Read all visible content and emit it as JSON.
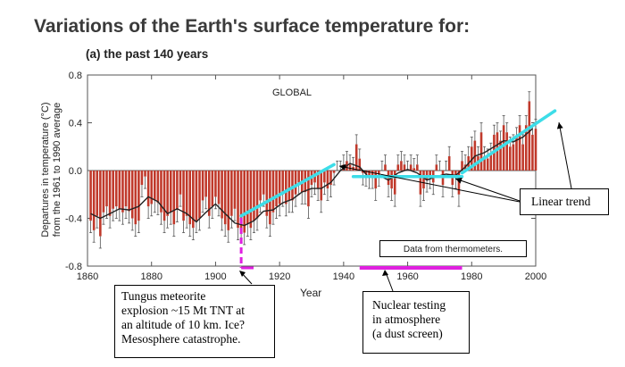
{
  "title": "Variations of the Earth's surface temperature for:",
  "subtitle": "(a) the past 140 years",
  "chart_data": {
    "type": "bar",
    "title": "GLOBAL",
    "xlabel": "Year",
    "ylabel_line1": "Departures in temperature (°C)",
    "ylabel_line2": "from the 1961 to 1990 average",
    "xlim": [
      1860,
      2000
    ],
    "ylim": [
      -0.8,
      0.8
    ],
    "x_ticks": [
      1860,
      1880,
      1900,
      1920,
      1940,
      1960,
      1980,
      2000
    ],
    "y_ticks": [
      "0.8",
      "0.4",
      "0.0",
      "-0.4",
      "-0.8"
    ],
    "y_tick_values": [
      0.8,
      0.4,
      0.0,
      -0.4,
      -0.8
    ],
    "bar_color": "#c0392b",
    "smooth_color": "#222222",
    "trend_color": "#3ddde8",
    "marker_color": "#e020e0",
    "years": [
      1861,
      1862,
      1863,
      1864,
      1865,
      1866,
      1867,
      1868,
      1869,
      1870,
      1871,
      1872,
      1873,
      1874,
      1875,
      1876,
      1877,
      1878,
      1879,
      1880,
      1881,
      1882,
      1883,
      1884,
      1885,
      1886,
      1887,
      1888,
      1889,
      1890,
      1891,
      1892,
      1893,
      1894,
      1895,
      1896,
      1897,
      1898,
      1899,
      1900,
      1901,
      1902,
      1903,
      1904,
      1905,
      1906,
      1907,
      1908,
      1909,
      1910,
      1911,
      1912,
      1913,
      1914,
      1915,
      1916,
      1917,
      1918,
      1919,
      1920,
      1921,
      1922,
      1923,
      1924,
      1925,
      1926,
      1927,
      1928,
      1929,
      1930,
      1931,
      1932,
      1933,
      1934,
      1935,
      1936,
      1937,
      1938,
      1939,
      1940,
      1941,
      1942,
      1943,
      1944,
      1945,
      1946,
      1947,
      1948,
      1949,
      1950,
      1951,
      1952,
      1953,
      1954,
      1955,
      1956,
      1957,
      1958,
      1959,
      1960,
      1961,
      1962,
      1963,
      1964,
      1965,
      1966,
      1967,
      1968,
      1969,
      1970,
      1971,
      1972,
      1973,
      1974,
      1975,
      1976,
      1977,
      1978,
      1979,
      1980,
      1981,
      1982,
      1983,
      1984,
      1985,
      1986,
      1987,
      1988,
      1989,
      1990,
      1991,
      1992,
      1993,
      1994,
      1995,
      1996,
      1997,
      1998,
      1999,
      2000
    ],
    "anomalies": [
      -0.42,
      -0.5,
      -0.38,
      -0.55,
      -0.35,
      -0.3,
      -0.38,
      -0.32,
      -0.3,
      -0.32,
      -0.35,
      -0.3,
      -0.34,
      -0.4,
      -0.45,
      -0.42,
      -0.12,
      -0.05,
      -0.3,
      -0.28,
      -0.25,
      -0.27,
      -0.35,
      -0.42,
      -0.38,
      -0.35,
      -0.45,
      -0.33,
      -0.2,
      -0.42,
      -0.38,
      -0.45,
      -0.48,
      -0.42,
      -0.4,
      -0.25,
      -0.22,
      -0.38,
      -0.3,
      -0.22,
      -0.28,
      -0.4,
      -0.45,
      -0.5,
      -0.38,
      -0.32,
      -0.48,
      -0.5,
      -0.52,
      -0.45,
      -0.48,
      -0.42,
      -0.4,
      -0.25,
      -0.2,
      -0.38,
      -0.45,
      -0.35,
      -0.3,
      -0.28,
      -0.2,
      -0.28,
      -0.25,
      -0.25,
      -0.2,
      -0.1,
      -0.18,
      -0.18,
      -0.3,
      -0.12,
      -0.1,
      -0.15,
      -0.25,
      -0.1,
      -0.15,
      -0.12,
      -0.02,
      0.0,
      0.0,
      0.05,
      0.08,
      0.05,
      0.03,
      0.22,
      0.1,
      -0.02,
      -0.03,
      -0.05,
      -0.05,
      -0.15,
      -0.03,
      0.0,
      0.05,
      -0.12,
      -0.15,
      -0.2,
      0.05,
      0.08,
      0.05,
      0.0,
      0.05,
      0.02,
      0.05,
      -0.2,
      -0.15,
      -0.08,
      -0.05,
      -0.1,
      0.05,
      0.0,
      -0.12,
      0.0,
      0.12,
      -0.12,
      -0.05,
      -0.2,
      0.08,
      0.05,
      0.12,
      0.2,
      0.25,
      0.12,
      0.32,
      0.12,
      0.1,
      0.15,
      0.3,
      0.32,
      0.25,
      0.38,
      0.32,
      0.2,
      0.22,
      0.28,
      0.38,
      0.22,
      0.38,
      0.58,
      0.3,
      0.35
    ],
    "smoothed_x": [
      1861,
      1864,
      1867,
      1870,
      1873,
      1876,
      1879,
      1882,
      1885,
      1888,
      1891,
      1894,
      1897,
      1900,
      1903,
      1906,
      1909,
      1912,
      1915,
      1918,
      1921,
      1924,
      1927,
      1930,
      1933,
      1936,
      1939,
      1942,
      1945,
      1948,
      1951,
      1954,
      1957,
      1960,
      1963,
      1966,
      1969,
      1972,
      1975,
      1978,
      1981,
      1984,
      1987,
      1990,
      1993,
      1996,
      1999
    ],
    "smoothed_y": [
      -0.36,
      -0.4,
      -0.36,
      -0.32,
      -0.33,
      -0.3,
      -0.22,
      -0.26,
      -0.36,
      -0.32,
      -0.36,
      -0.43,
      -0.35,
      -0.28,
      -0.36,
      -0.44,
      -0.46,
      -0.42,
      -0.34,
      -0.33,
      -0.27,
      -0.24,
      -0.18,
      -0.15,
      -0.15,
      -0.1,
      0.0,
      0.06,
      0.03,
      -0.06,
      -0.04,
      -0.08,
      -0.02,
      0.01,
      -0.02,
      -0.08,
      -0.05,
      -0.03,
      -0.04,
      0.03,
      0.12,
      0.15,
      0.2,
      0.25,
      0.24,
      0.28,
      0.35
    ],
    "trend_lines": [
      {
        "x": [
          1908,
          1937
        ],
        "y": [
          -0.38,
          0.05
        ]
      },
      {
        "x": [
          1943,
          1977
        ],
        "y": [
          -0.05,
          -0.05
        ]
      },
      {
        "x": [
          1977,
          2006
        ],
        "y": [
          -0.02,
          0.5
        ]
      }
    ],
    "event_markers": [
      {
        "name": "tungus",
        "year": 1908
      },
      {
        "name": "nuclear_start",
        "year": 1945
      },
      {
        "name": "nuclear_end",
        "year": 1977
      }
    ],
    "global_label": "GLOBAL",
    "data_source_label": "Data from thermometers."
  },
  "annotations": {
    "tungus": [
      "Tungus meteorite",
      "explosion ~15 Mt TNT at",
      "an altitude of 10 km. Ice?",
      "Mesosphere catastrophe."
    ],
    "nuclear": [
      "Nuclear testing",
      "in atmosphere",
      "(a dust screen)"
    ],
    "linear": "Linear trend"
  }
}
